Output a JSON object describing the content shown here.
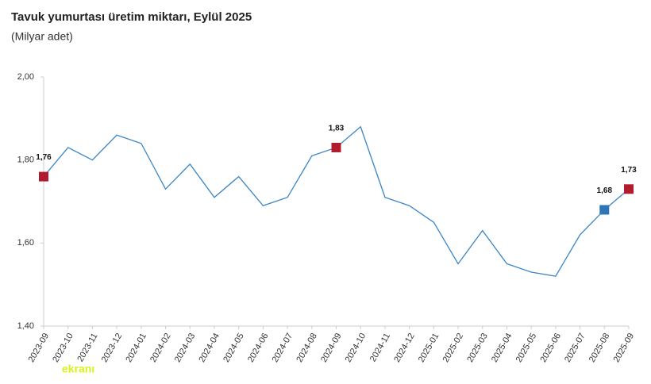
{
  "chart_data": {
    "type": "line",
    "title": "Tavuk yumurtası üretim miktarı, Eylül 2025",
    "subtitle": "(Milyar adet)",
    "watermark": "ekranı",
    "categories": [
      "2023-09",
      "2023-10",
      "2023-11",
      "2023-12",
      "2024-01",
      "2024-02",
      "2024-03",
      "2024-04",
      "2024-05",
      "2024-06",
      "2024-07",
      "2024-08",
      "2024-09",
      "2024-10",
      "2024-11",
      "2024-12",
      "2025-01",
      "2025-02",
      "2025-03",
      "2025-04",
      "2025-05",
      "2025-06",
      "2025-07",
      "2025-08",
      "2025-09"
    ],
    "values": [
      1.76,
      1.83,
      1.8,
      1.86,
      1.84,
      1.73,
      1.79,
      1.71,
      1.76,
      1.69,
      1.71,
      1.81,
      1.83,
      1.88,
      1.71,
      1.69,
      1.65,
      1.55,
      1.63,
      1.55,
      1.53,
      1.52,
      1.62,
      1.68,
      1.73
    ],
    "value_labels": [
      "1,76",
      null,
      null,
      null,
      null,
      null,
      null,
      null,
      null,
      null,
      null,
      null,
      "1,83",
      null,
      null,
      null,
      null,
      null,
      null,
      null,
      null,
      null,
      null,
      "1,68",
      "1,73"
    ],
    "marker_colors": [
      "#b01c2e",
      null,
      null,
      null,
      null,
      null,
      null,
      null,
      null,
      null,
      null,
      null,
      "#b01c2e",
      null,
      null,
      null,
      null,
      null,
      null,
      null,
      null,
      null,
      null,
      "#2e75b6",
      "#b01c2e"
    ],
    "color": "#3a85c6",
    "ylim": [
      1.4,
      2.0
    ],
    "yticks": [
      {
        "value": 1.4,
        "label": "1,40"
      },
      {
        "value": 1.6,
        "label": "1,60"
      },
      {
        "value": 1.8,
        "label": "1,80"
      },
      {
        "value": 2.0,
        "label": "2,00"
      }
    ]
  }
}
